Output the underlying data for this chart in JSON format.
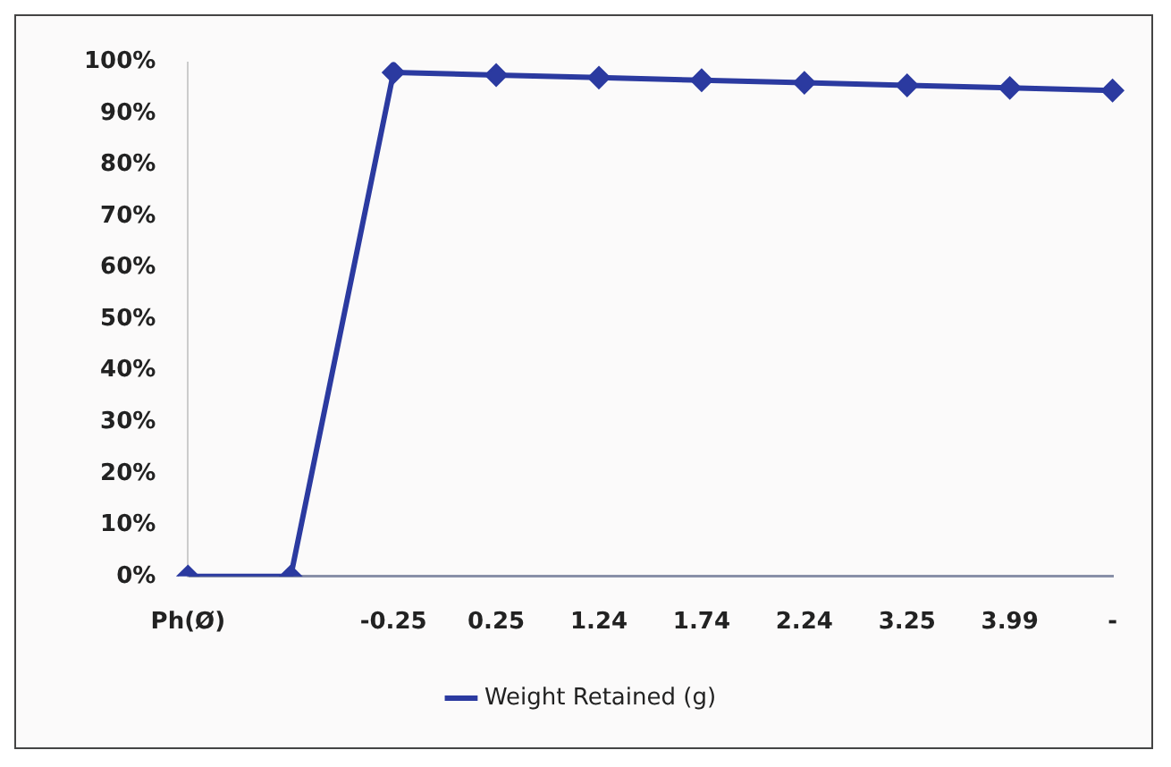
{
  "chart_data": {
    "type": "line",
    "categories": [
      "Ph(Ø)",
      null,
      "-0.25",
      "0.25",
      "1.24",
      "1.74",
      "2.24",
      "3.25",
      "3.99",
      "-"
    ],
    "series": [
      {
        "name": "Weight Retained (g)",
        "color": "#2b3aa0",
        "values": [
          0,
          0,
          98,
          97.5,
          97,
          96.5,
          96,
          95.5,
          95,
          94.5
        ]
      }
    ],
    "ylim": [
      0,
      100
    ],
    "yticks": [
      {
        "value": 0,
        "label": "0%"
      },
      {
        "value": 10,
        "label": "10%"
      },
      {
        "value": 20,
        "label": "20%"
      },
      {
        "value": 30,
        "label": "30%"
      },
      {
        "value": 40,
        "label": "40%"
      },
      {
        "value": 50,
        "label": "50%"
      },
      {
        "value": 60,
        "label": "60%"
      },
      {
        "value": 70,
        "label": "70%"
      },
      {
        "value": 80,
        "label": "80%"
      },
      {
        "value": 90,
        "label": "90%"
      },
      {
        "value": 100,
        "label": "100%"
      }
    ],
    "grid": false,
    "legend": "bottom",
    "marker": "diamond",
    "line_style": "solid"
  }
}
